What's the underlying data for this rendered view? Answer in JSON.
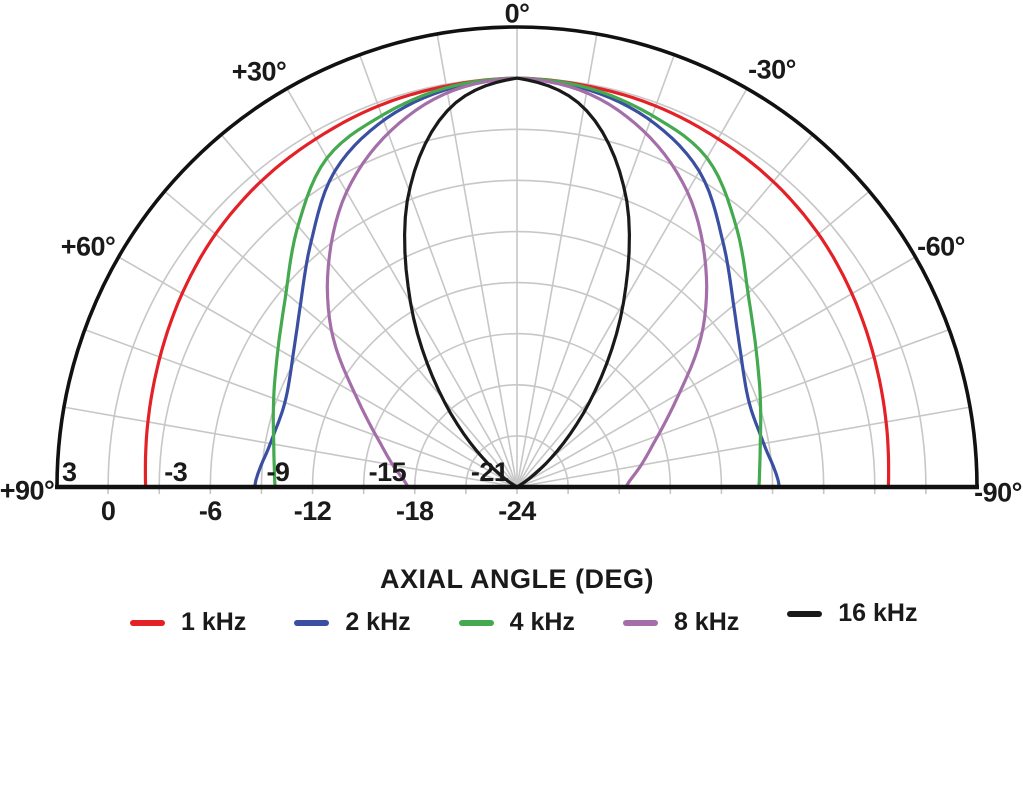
{
  "chart_data": {
    "type": "line",
    "subtype": "polar-half",
    "title": "",
    "xlabel": "AXIAL ANGLE (DEG)",
    "r_axis": {
      "unit": "dB",
      "min": -24,
      "max": 3,
      "ring_step": 3
    },
    "angle_axis": {
      "unit": "deg",
      "range": [
        -90,
        90
      ],
      "grid_step": 10,
      "positive_side": "left"
    },
    "grid": true,
    "legend_position": "bottom",
    "angle_labels": [
      "0°",
      "+30°",
      "-30°",
      "+60°",
      "-60°",
      "+90°",
      "-90°"
    ],
    "r_tick_labels_above_baseline": [
      "3",
      "-3",
      "-9",
      "-15",
      "-21"
    ],
    "r_tick_values_above_baseline": [
      3,
      -3,
      -9,
      -15,
      -21
    ],
    "r_tick_labels_below_baseline": [
      "0",
      "-6",
      "-12",
      "-18",
      "-24"
    ],
    "r_tick_values_below_baseline": [
      0,
      -6,
      -12,
      -18,
      -24
    ],
    "sample_angles_deg": [
      0,
      10,
      20,
      30,
      40,
      50,
      60,
      70,
      80,
      90
    ],
    "symmetric": true,
    "series": [
      {
        "name": "1 kHz",
        "color": "#e32126",
        "values_db": [
          0,
          -0.1,
          -0.2,
          -0.4,
          -0.6,
          -0.9,
          -1.3,
          -1.7,
          -2.0,
          -2.2
        ]
      },
      {
        "name": "2 kHz",
        "color": "#3a4fa2",
        "values_db": [
          0,
          -0.3,
          -1.1,
          -2.6,
          -5.2,
          -7.4,
          -8.8,
          -9.5,
          -9.3,
          -8.6
        ]
      },
      {
        "name": "4 kHz",
        "color": "#44a94f",
        "values_db": [
          0,
          -0.2,
          -0.8,
          -1.7,
          -4.0,
          -6.3,
          -7.8,
          -8.8,
          -9.5,
          -9.8
        ]
      },
      {
        "name": "8 kHz",
        "color": "#a46fa9",
        "values_db": [
          0,
          -0.5,
          -1.9,
          -4.0,
          -6.8,
          -9.8,
          -13.0,
          -15.2,
          -16.6,
          -17.6
        ]
      },
      {
        "name": "16 kHz",
        "color": "#1a1a1a",
        "values_db": [
          0,
          -1.4,
          -5.5,
          -11.5,
          -17.2,
          -21.5,
          -24,
          -24,
          -24,
          -24
        ]
      }
    ],
    "colors": {
      "grid": "#c7c7c7",
      "frame": "#111111",
      "text": "#1a1a1a",
      "background": "#ffffff"
    }
  }
}
